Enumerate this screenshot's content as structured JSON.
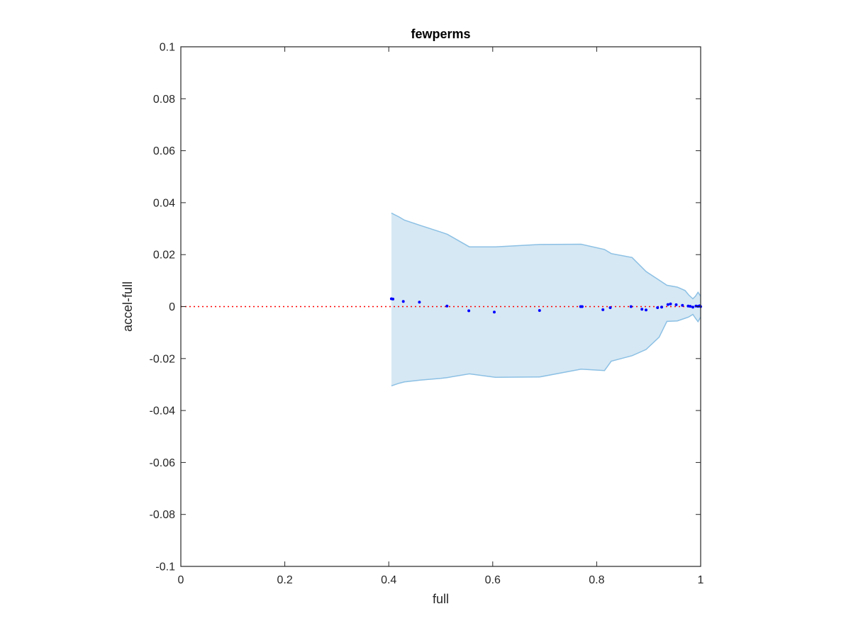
{
  "chart_data": {
    "type": "scatter",
    "title": "fewperms",
    "xlabel": "full",
    "ylabel": "accel-full",
    "xlim": [
      0,
      1
    ],
    "ylim": [
      -0.1,
      0.1
    ],
    "xticks": [
      0,
      0.2,
      0.4,
      0.6,
      0.8,
      1
    ],
    "xtick_labels": [
      "0",
      "0.2",
      "0.4",
      "0.6",
      "0.8",
      "1"
    ],
    "yticks": [
      0.1,
      0.08,
      0.06,
      0.04,
      0.02,
      0,
      -0.02,
      -0.04,
      -0.06,
      -0.08,
      -0.1
    ],
    "ytick_labels": [
      "0.1",
      "0.08",
      "0.06",
      "0.04",
      "0.02",
      "0",
      "-0.02",
      "-0.04",
      "-0.06",
      "-0.08",
      "-0.1"
    ],
    "grid": false,
    "reference_line": {
      "y": 0,
      "style": "dotted",
      "color": "#ff0000"
    },
    "band": {
      "color": "#d6e8f4",
      "edge_color": "#8cc0e4",
      "x": [
        0.405,
        0.42,
        0.43,
        0.46,
        0.5,
        0.513,
        0.555,
        0.605,
        0.69,
        0.77,
        0.815,
        0.828,
        0.868,
        0.895,
        0.92,
        0.935,
        0.955,
        0.97,
        0.977,
        0.985,
        0.99,
        0.995,
        1.0
      ],
      "upper": [
        0.036,
        0.0345,
        0.0333,
        0.0313,
        0.0287,
        0.0278,
        0.023,
        0.023,
        0.0239,
        0.024,
        0.022,
        0.0204,
        0.0189,
        0.0135,
        0.0102,
        0.0082,
        0.0075,
        0.0062,
        0.0045,
        0.003,
        0.004,
        0.0055,
        0.004
      ],
      "lower": [
        -0.0305,
        -0.0295,
        -0.029,
        -0.0283,
        -0.0276,
        -0.0273,
        -0.0259,
        -0.0272,
        -0.0271,
        -0.0241,
        -0.0246,
        -0.021,
        -0.0189,
        -0.0165,
        -0.0118,
        -0.0057,
        -0.0055,
        -0.0045,
        -0.004,
        -0.003,
        -0.0045,
        -0.0058,
        -0.004
      ]
    },
    "series": [
      {
        "color": "#0000ff",
        "x": [
          0.405,
          0.408,
          0.428,
          0.459,
          0.512,
          0.554,
          0.603,
          0.69,
          0.769,
          0.772,
          0.812,
          0.826,
          0.866,
          0.887,
          0.895,
          0.917,
          0.925,
          0.937,
          0.942,
          0.953,
          0.965,
          0.976,
          0.98,
          0.985,
          0.991,
          0.995,
          0.998,
          1.0
        ],
        "y": [
          0.003,
          0.0029,
          0.002,
          0.0017,
          0.0002,
          -0.0016,
          -0.0021,
          -0.0015,
          0.0,
          0.0,
          -0.0012,
          -0.0004,
          0.0,
          -0.001,
          -0.0013,
          -0.0004,
          -0.0002,
          0.0008,
          0.001,
          0.0007,
          0.0005,
          0.0002,
          0.0001,
          -0.0002,
          0.0002,
          0.0001,
          0.0003,
          0.0
        ]
      }
    ]
  }
}
